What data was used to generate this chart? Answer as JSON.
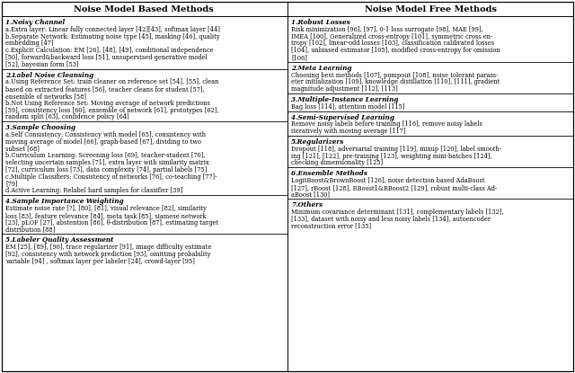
{
  "fig_width": 6.4,
  "fig_height": 4.15,
  "dpi": 100,
  "bg_color": "#ffffff",
  "left_header": "Noise Model Based Methods",
  "right_header": "Noise Model Free Methods",
  "left_sections": [
    {
      "title": "1.Noisy Channel",
      "content": "a.Extra layer: Linear fully connected layer [42][43], softmax layer [44]\nb.Separate Network: Estimating noise type [45], masking [46], quality\nembedding [47]\nc.Explicit Calculation: EM [26], [48], [49], conditional independence\n[50], forward&backward loss [51], unsupervised generative model\n[52], bayesian form [53]"
    },
    {
      "title": "2.Label Noise Cleansing",
      "content": "a.Using Reference Set: train cleaner on reference set [54], [55], clean\nbased on extracted features [56], teacher cleans for student [57],\nensemble of networks [58]\nb.Not Using Reference Set: Moving average of network predictions\n[59], consistency loss [60], ensemble of network [61], prototypes [62],\nrandom split [63], confidence policy [64]"
    },
    {
      "title": "3.Sample Choosing",
      "content": "a.Self Consistency: Consistency with model [65], consistency with\nmoving average of model [66], graph-based [67], dividing to two\nsubset [68]\nb.Curriculum Learning: Screening loss [69], teacher-student [70],\nselecting uncertain samples [71], extra layer with similarity matrix\n[72], curriculum loss [73], data complexity [74], partial labels [75]\nc.Multiple Classifiers: Consistency of networks [76], co-teaching [77]-\n[79]\nd.Active Learning: Relabel hard samples for classifier [39]"
    },
    {
      "title": "4.Sample Importance Weighting",
      "content": "Estimate noise rate [?], [80], [81], visual relevance [82], similarity\nloss [83], feature relevance [84], meta task [85], siamese network\n[23], pLOF [27], abstention [86], θ-distribution [87], estimating target\ndistribution [88]"
    },
    {
      "title": "5.Labeler Quality Assessment",
      "content": "EM [25], [89], [90], trace regularizer [91], image difficulty estimate\n[92], consistency with network prediction [93], omitting probability\nvariable [94] , softmax layer per labeler [24], crowd-layer [95]"
    }
  ],
  "right_sections": [
    {
      "title": "1.Robust Losses",
      "content": "Risk minimization [96], [97], 0-1 loss surrogate [98], MAE [99],\nIMEA [100], Generalized cross-entropy [101], symmetric cross en-\ntropy [102], linear-odd losses [103], classification calibrated losses\n[104], unbiased estimator [105], modified cross-entropy for omission\n[106]"
    },
    {
      "title": "2.Meta Learning",
      "content": "Choosing best methods [107], pumpout [108], noise tolerant param-\neter initialization [109], knowledge distillation [110], [111], gradient\nmagnitude adjustment [112], [113]"
    },
    {
      "title": "3.Multiple-Instance Learning",
      "content": "Bag loss [114], attention model [115]"
    },
    {
      "title": "4.Semi-Supervised Learning",
      "content": "Remove noisy labels before training [116], remove noisy labels\niteratively with moving average [117]"
    },
    {
      "title": "5.Regularizers",
      "content": "Dropout [118], adversarial training [119], mixup [120], label smooth-\ning [121], [122], pre-training [123], weighting mini-batches [124],\nchecking dimensionality [125]"
    },
    {
      "title": "6.Ensemble Methods",
      "content": "LogitBoost&BrownBoost [126], noise detection based AdaBoost\n[127], rBoost [128], RBoost1&RBoost2 [129], robust multi-class Ad-\naBoost [130]"
    },
    {
      "title": "7.Others",
      "content": "Minimum covariance determinant [131], complementary labels [132],\n[133], dataset with noisy and less noisy labels [134], autoencoder\nreconstruction error [135]"
    }
  ]
}
